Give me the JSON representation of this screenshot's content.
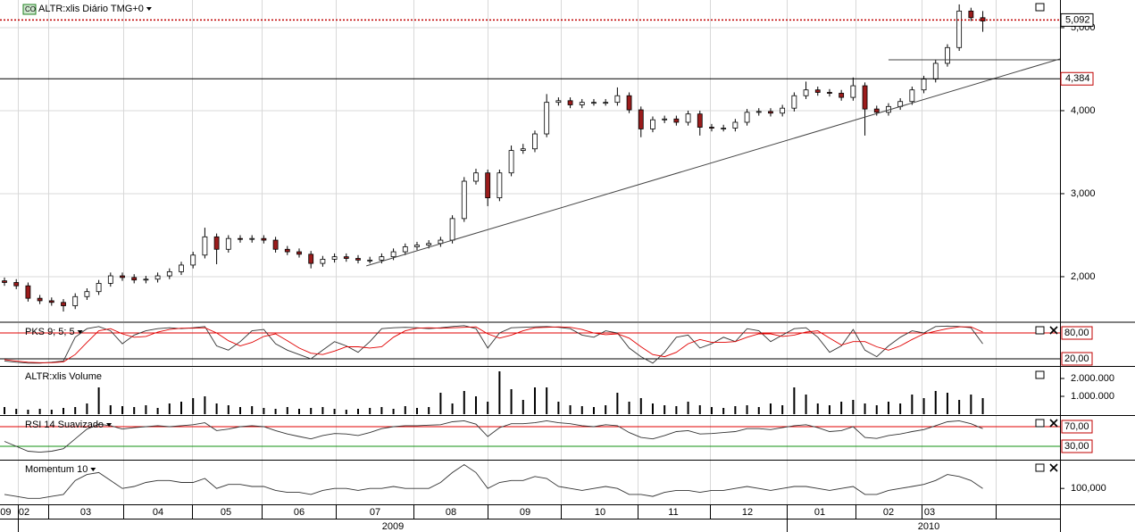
{
  "chart_data": [
    {
      "type": "candlestick",
      "icon": "CO",
      "title": "ALTR:xlis Diário TMG+0",
      "xlim": [
        -0.38,
        89.55
      ],
      "ylim": [
        1462,
        5333
      ],
      "yticks": [
        {
          "value": 2000,
          "label": "2,000"
        },
        {
          "value": 3000,
          "label": "3,000"
        },
        {
          "value": 4000,
          "label": "4,000"
        },
        {
          "value": 5000,
          "label": "5,000"
        }
      ],
      "grid": true,
      "up_color": "#ffffff",
      "down_color": "#9b1c1c",
      "open": [
        1950,
        1930,
        1890,
        1740,
        1710,
        1690,
        1650,
        1760,
        1820,
        1920,
        2010,
        1990,
        1960,
        1970,
        2010,
        2060,
        2140,
        2260,
        2480,
        2330,
        2460,
        2450,
        2460,
        2440,
        2330,
        2300,
        2270,
        2160,
        2210,
        2240,
        2220,
        2200,
        2200,
        2240,
        2300,
        2360,
        2380,
        2400,
        2440,
        2700,
        3150,
        3250,
        2950,
        3250,
        3520,
        3540,
        3720,
        4100,
        4120,
        4070,
        4100,
        4100,
        4100,
        4180,
        4010,
        3780,
        3890,
        3900,
        3860,
        3960,
        3800,
        3790,
        3790,
        3860,
        3980,
        3990,
        3970,
        4030,
        4180,
        4250,
        4220,
        4210,
        4160,
        4300,
        4020,
        3980,
        4050,
        4110,
        4250,
        4380,
        4570,
        4760,
        5200,
        5120
      ],
      "high": [
        1990,
        1970,
        1930,
        1780,
        1750,
        1730,
        1800,
        1860,
        1960,
        2050,
        2050,
        2030,
        2010,
        2050,
        2100,
        2180,
        2300,
        2590,
        2520,
        2500,
        2500,
        2500,
        2500,
        2480,
        2370,
        2340,
        2310,
        2250,
        2280,
        2280,
        2260,
        2240,
        2280,
        2340,
        2400,
        2420,
        2440,
        2480,
        2740,
        3200,
        3300,
        3290,
        3290,
        3580,
        3600,
        3760,
        4200,
        4160,
        4160,
        4140,
        4140,
        4140,
        4280,
        4220,
        4050,
        3930,
        3940,
        3940,
        4000,
        4000,
        3840,
        3830,
        3900,
        4020,
        4030,
        4030,
        4070,
        4220,
        4350,
        4290,
        4260,
        4250,
        4400,
        4340,
        4060,
        4090,
        4150,
        4290,
        4420,
        4610,
        4800,
        5280,
        5240,
        5200
      ],
      "low": [
        1890,
        1850,
        1700,
        1670,
        1650,
        1580,
        1610,
        1720,
        1780,
        1880,
        1950,
        1920,
        1920,
        1930,
        1970,
        2020,
        2100,
        2220,
        2150,
        2290,
        2410,
        2410,
        2400,
        2290,
        2260,
        2230,
        2100,
        2120,
        2170,
        2180,
        2160,
        2160,
        2160,
        2200,
        2260,
        2320,
        2340,
        2360,
        2400,
        2660,
        3110,
        2850,
        2910,
        3210,
        3480,
        3500,
        3680,
        4060,
        4030,
        4030,
        4060,
        4060,
        4060,
        3970,
        3680,
        3740,
        3850,
        3820,
        3820,
        3700,
        3750,
        3750,
        3750,
        3820,
        3940,
        3930,
        3930,
        3990,
        4140,
        4180,
        4170,
        4120,
        4120,
        3700,
        3940,
        3940,
        4010,
        4070,
        4210,
        4340,
        4530,
        4720,
        5080,
        4950
      ],
      "close": [
        1930,
        1890,
        1740,
        1710,
        1690,
        1650,
        1760,
        1820,
        1920,
        2010,
        1990,
        1960,
        1970,
        2010,
        2060,
        2140,
        2260,
        2480,
        2330,
        2460,
        2450,
        2460,
        2440,
        2330,
        2300,
        2270,
        2160,
        2210,
        2240,
        2220,
        2200,
        2200,
        2240,
        2300,
        2360,
        2380,
        2400,
        2440,
        2700,
        3150,
        3250,
        2950,
        3250,
        3520,
        3540,
        3720,
        4100,
        4120,
        4070,
        4100,
        4100,
        4100,
        4180,
        4010,
        3780,
        3890,
        3900,
        3860,
        3960,
        3800,
        3790,
        3790,
        3860,
        3980,
        3990,
        3970,
        4030,
        4180,
        4250,
        4220,
        4210,
        4160,
        4300,
        4020,
        3980,
        4050,
        4110,
        4250,
        4380,
        4570,
        4760,
        5200,
        5120,
        5080
      ],
      "last_price": {
        "value": 5092,
        "label": "5,092",
        "color": "#c00000"
      },
      "levels": [
        {
          "value": 4384,
          "label": "4,384",
          "color": "#c00000"
        }
      ],
      "trendlines": [
        {
          "x": [
            30.7,
            89.55
          ],
          "y": [
            2130,
            4624
          ]
        },
        {
          "x": [
            75,
            89.55
          ],
          "y": [
            4613,
            4613
          ]
        }
      ]
    },
    {
      "type": "line",
      "title": "PKS 9; 5; 5",
      "xlim": [
        -0.38,
        89.55
      ],
      "ylim": [
        3.4,
        102.8
      ],
      "yticks": [
        {
          "value": 80,
          "label": "80,00"
        },
        {
          "value": 20,
          "label": "20,00"
        }
      ],
      "ytick_line_colors": [
        "#e00000",
        "#000000"
      ],
      "series": [
        {
          "color": "#333333",
          "values": [
            15,
            12,
            10,
            10,
            12,
            15,
            70,
            90,
            95,
            85,
            55,
            75,
            85,
            90,
            92,
            90,
            92,
            95,
            50,
            40,
            60,
            85,
            88,
            55,
            40,
            30,
            20,
            40,
            60,
            50,
            35,
            60,
            90,
            92,
            93,
            92,
            90,
            92,
            95,
            97,
            90,
            45,
            80,
            92,
            93,
            94,
            95,
            93,
            90,
            75,
            70,
            85,
            80,
            45,
            25,
            10,
            35,
            70,
            75,
            45,
            55,
            70,
            60,
            90,
            85,
            60,
            75,
            90,
            92,
            70,
            35,
            50,
            88,
            40,
            25,
            50,
            70,
            85,
            80,
            95,
            96,
            95,
            92,
            55
          ]
        },
        {
          "color": "#e00000",
          "values": [
            18,
            15,
            12,
            11,
            11,
            13,
            30,
            58,
            85,
            90,
            78,
            70,
            72,
            82,
            88,
            91,
            91,
            92,
            80,
            62,
            50,
            58,
            72,
            78,
            62,
            45,
            33,
            30,
            38,
            48,
            48,
            45,
            48,
            70,
            85,
            91,
            92,
            91,
            92,
            93,
            94,
            78,
            68,
            75,
            85,
            92,
            93,
            94,
            93,
            88,
            80,
            76,
            78,
            68,
            48,
            30,
            25,
            35,
            55,
            65,
            58,
            58,
            60,
            70,
            78,
            78,
            72,
            75,
            82,
            85,
            68,
            52,
            60,
            60,
            48,
            40,
            50,
            65,
            78,
            84,
            90,
            94,
            94,
            82
          ]
        }
      ]
    },
    {
      "type": "bar",
      "title": "ALTR:xlis Volume",
      "xlim": [
        -0.38,
        89.55
      ],
      "ylim": [
        0,
        2600000
      ],
      "color": "#000000",
      "yticks": [
        {
          "value": 2000000,
          "label": "2.000.000"
        },
        {
          "value": 1000000,
          "label": "1.000.000"
        }
      ],
      "values": [
        400000,
        300000,
        250000,
        300000,
        250000,
        350000,
        400000,
        600000,
        1500000,
        500000,
        450000,
        400000,
        500000,
        350000,
        600000,
        700000,
        900000,
        1000000,
        600000,
        500000,
        400000,
        450000,
        350000,
        300000,
        400000,
        300000,
        350000,
        400000,
        300000,
        250000,
        300000,
        350000,
        400000,
        300000,
        450000,
        350000,
        400000,
        1200000,
        600000,
        1300000,
        1000000,
        700000,
        2400000,
        1400000,
        800000,
        1500000,
        1500000,
        700000,
        500000,
        450000,
        400000,
        500000,
        1200000,
        700000,
        900000,
        600000,
        500000,
        450000,
        700000,
        500000,
        400000,
        350000,
        450000,
        500000,
        400000,
        600000,
        500000,
        1500000,
        1100000,
        600000,
        500000,
        700000,
        800000,
        600000,
        500000,
        700000,
        600000,
        1100000,
        900000,
        1300000,
        1200000,
        800000,
        1100000,
        900000
      ]
    },
    {
      "type": "line",
      "title": "RSI 14 Suavizado",
      "xlim": [
        -0.38,
        89.55
      ],
      "ylim": [
        2.7,
        91.8
      ],
      "yticks": [
        {
          "value": 70,
          "label": "70,00"
        },
        {
          "value": 30,
          "label": "30,00"
        }
      ],
      "ytick_line_colors": [
        "#e00000",
        "#109010"
      ],
      "series": [
        {
          "color": "#333333",
          "values": [
            40,
            30,
            20,
            18,
            20,
            25,
            45,
            65,
            75,
            72,
            65,
            68,
            70,
            72,
            70,
            72,
            74,
            78,
            62,
            65,
            70,
            72,
            70,
            62,
            55,
            50,
            45,
            52,
            56,
            55,
            52,
            58,
            66,
            70,
            72,
            72,
            73,
            74,
            80,
            82,
            75,
            50,
            68,
            76,
            76,
            78,
            82,
            78,
            76,
            72,
            70,
            74,
            72,
            58,
            48,
            45,
            52,
            60,
            62,
            55,
            56,
            58,
            60,
            66,
            66,
            64,
            68,
            72,
            74,
            68,
            60,
            62,
            70,
            48,
            46,
            52,
            55,
            60,
            64,
            72,
            80,
            82,
            76,
            66
          ]
        }
      ]
    },
    {
      "type": "line",
      "title": "Momentum 10",
      "xlim": [
        -0.38,
        89.55
      ],
      "ylim": [
        92,
        114
      ],
      "yticks": [
        {
          "value": 100,
          "label": "100,000"
        }
      ],
      "series": [
        {
          "color": "#333333",
          "values": [
            97,
            96,
            95,
            95,
            96,
            97,
            104,
            107,
            108,
            104,
            100,
            101,
            103,
            104,
            104,
            103,
            103,
            105,
            100,
            102,
            102,
            101,
            101,
            99,
            98,
            98,
            97,
            99,
            100,
            100,
            99,
            100,
            100,
            101,
            100,
            100,
            100,
            103,
            108,
            112,
            108,
            100,
            103,
            104,
            104,
            106,
            105,
            101,
            100,
            99,
            100,
            101,
            100,
            97,
            97,
            96,
            98,
            99,
            99,
            98,
            99,
            99,
            100,
            101,
            100,
            99,
            100,
            101,
            101,
            100,
            99,
            100,
            101,
            97,
            97,
            99,
            100,
            101,
            102,
            104,
            107,
            106,
            104,
            100
          ]
        }
      ]
    }
  ],
  "x_axis": {
    "months": [
      "02",
      "03",
      "04",
      "05",
      "06",
      "07",
      "08",
      "09",
      "10",
      "11",
      "12",
      "01",
      "02",
      "03"
    ],
    "years": [
      "2009",
      "2009",
      "2010"
    ]
  }
}
